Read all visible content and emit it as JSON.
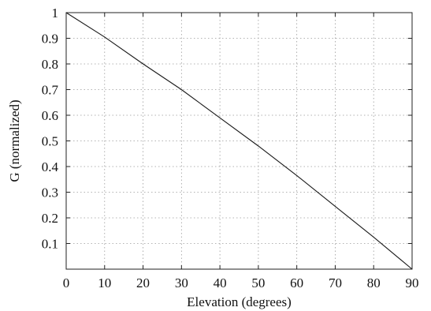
{
  "chart_data": {
    "type": "line",
    "xlabel": "Elevation (degrees)",
    "ylabel": "G (normalized)",
    "xlim": [
      0,
      90
    ],
    "ylim": [
      0,
      1
    ],
    "xticks": [
      0,
      10,
      20,
      30,
      40,
      50,
      60,
      70,
      80,
      90
    ],
    "yticks": [
      0.1,
      0.2,
      0.3,
      0.4,
      0.5,
      0.6,
      0.7,
      0.8,
      0.9,
      1
    ],
    "xtick_labels": [
      "0",
      "10",
      "20",
      "30",
      "40",
      "50",
      "60",
      "70",
      "80",
      "90"
    ],
    "ytick_labels": [
      "0.1",
      "0.2",
      "0.3",
      "0.4",
      "0.5",
      "0.6",
      "0.7",
      "0.8",
      "0.9",
      "1"
    ],
    "grid": true,
    "series": [
      {
        "x": [
          0,
          10,
          20,
          30,
          40,
          50,
          60,
          70,
          80,
          90
        ],
        "values": [
          1.0,
          0.905,
          0.8,
          0.7,
          0.59,
          0.48,
          0.365,
          0.245,
          0.125,
          0.0
        ],
        "color": "#1a1a1a"
      }
    ]
  }
}
